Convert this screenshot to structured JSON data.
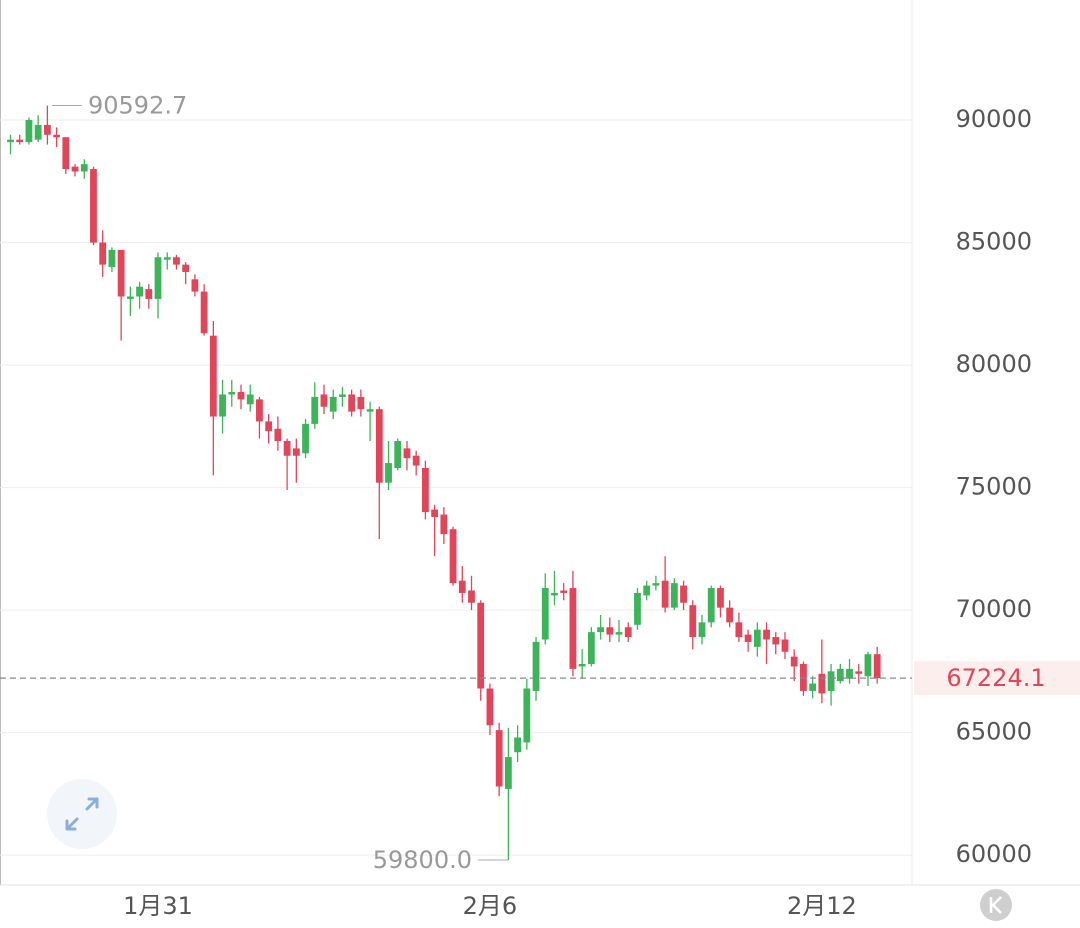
{
  "chart_data": {
    "type": "candlestick",
    "categories": [
      null,
      null,
      null,
      null,
      null,
      null,
      null,
      null,
      null,
      null,
      null,
      null,
      null,
      null,
      null,
      null,
      "1月31",
      null,
      null,
      null,
      null,
      null,
      null,
      null,
      null,
      null,
      null,
      null,
      null,
      null,
      null,
      null,
      null,
      null,
      null,
      null,
      null,
      null,
      null,
      null,
      null,
      null,
      null,
      null,
      null,
      null,
      null,
      null,
      null,
      null,
      null,
      null,
      "2月6",
      null,
      null,
      null,
      null,
      null,
      null,
      null,
      null,
      null,
      null,
      null,
      null,
      null,
      null,
      null,
      null,
      null,
      null,
      null,
      null,
      null,
      null,
      null,
      null,
      null,
      null,
      null,
      null,
      null,
      null,
      null,
      null,
      null,
      null,
      null,
      "2月12",
      null,
      null,
      null,
      null,
      null,
      null
    ],
    "open": [
      89100,
      89200,
      89100,
      89200,
      89800,
      89400,
      89300,
      88100,
      87900,
      88000,
      85000,
      84000,
      84700,
      82700,
      82800,
      83100,
      82700,
      84300,
      84400,
      84100,
      83500,
      83000,
      81200,
      77900,
      78800,
      78900,
      78400,
      78600,
      77700,
      77400,
      76900,
      76600,
      76400,
      77600,
      78800,
      78100,
      78700,
      78800,
      78700,
      78100,
      78200,
      75200,
      75800,
      76600,
      76300,
      75800,
      74100,
      73900,
      73300,
      71200,
      70800,
      70300,
      66800,
      65100,
      62700,
      64200,
      64600,
      66700,
      68800,
      70600,
      70800,
      70900,
      67700,
      67800,
      69100,
      69300,
      69000,
      69300,
      69400,
      70600,
      71000,
      71200,
      70100,
      71000,
      70200,
      68900,
      69500,
      70900,
      70100,
      69500,
      69000,
      68500,
      69200,
      68900,
      68800,
      68100,
      67800,
      66700,
      67400,
      66700,
      67100,
      67200,
      67500,
      67300,
      68200
    ],
    "high": [
      89400,
      89400,
      90100,
      90200,
      90592.7,
      89700,
      89300,
      88200,
      88400,
      88100,
      85500,
      84800,
      84700,
      83200,
      83400,
      83300,
      84600,
      84600,
      84500,
      84200,
      83700,
      83300,
      81800,
      79400,
      79400,
      79200,
      79200,
      78700,
      78000,
      77900,
      77000,
      77000,
      77800,
      79300,
      79200,
      79000,
      79100,
      79000,
      79000,
      78500,
      78300,
      76900,
      77000,
      76900,
      76500,
      76100,
      74300,
      74200,
      73400,
      71800,
      71400,
      70400,
      67000,
      65400,
      65200,
      65300,
      67200,
      68900,
      71500,
      71600,
      71100,
      71600,
      68400,
      69300,
      69800,
      69700,
      69600,
      69500,
      70900,
      71200,
      71400,
      72200,
      71300,
      71200,
      70400,
      69800,
      71000,
      71000,
      70400,
      69900,
      69200,
      69500,
      69500,
      69100,
      69100,
      68400,
      67900,
      67300,
      68800,
      67800,
      67800,
      68000,
      67800,
      68300,
      68500
    ],
    "low": [
      88600,
      89000,
      89000,
      89100,
      89000,
      88900,
      87800,
      87700,
      87600,
      84900,
      83600,
      83800,
      81000,
      82000,
      82300,
      82300,
      81900,
      83900,
      83900,
      83300,
      82800,
      81200,
      75500,
      77200,
      78300,
      78200,
      78100,
      77000,
      76800,
      76500,
      74900,
      75200,
      76200,
      77400,
      78000,
      77800,
      78300,
      77900,
      77900,
      76900,
      72900,
      74900,
      75700,
      75700,
      75500,
      73700,
      72200,
      72700,
      71000,
      70300,
      70000,
      66300,
      64900,
      62400,
      59800,
      63800,
      64300,
      66300,
      68600,
      70200,
      70400,
      67300,
      67200,
      67700,
      68800,
      68700,
      68700,
      68700,
      69200,
      70400,
      70800,
      69900,
      70000,
      70000,
      68400,
      68600,
      69300,
      69700,
      69300,
      68700,
      68300,
      68100,
      67800,
      68200,
      68000,
      67100,
      66500,
      66400,
      66200,
      66100,
      67000,
      67000,
      67000,
      66900,
      67000
    ],
    "close": [
      89200,
      89100,
      90000,
      89800,
      89400,
      89300,
      88000,
      87900,
      88200,
      85000,
      84100,
      84700,
      82800,
      82800,
      83200,
      82700,
      84400,
      84400,
      84100,
      83800,
      83000,
      81300,
      77900,
      78800,
      78900,
      78600,
      78800,
      77700,
      77300,
      76900,
      76300,
      76300,
      77600,
      78700,
      78300,
      78700,
      78800,
      78100,
      78200,
      78200,
      75200,
      76000,
      76900,
      76200,
      75900,
      74000,
      73800,
      73100,
      71100,
      70700,
      70300,
      66800,
      65300,
      62800,
      64000,
      64800,
      66800,
      68700,
      70900,
      70700,
      70700,
      67600,
      67800,
      69100,
      69300,
      69000,
      69100,
      68900,
      70700,
      71000,
      71100,
      70100,
      71100,
      70300,
      68900,
      69500,
      70900,
      70100,
      69500,
      68900,
      68700,
      69200,
      68800,
      68600,
      68300,
      67700,
      66700,
      67000,
      66600,
      67500,
      67600,
      67600,
      67400,
      68200,
      67224.1
    ],
    "up_color": "#3db35a",
    "down_color": "#e0455a",
    "ylim": [
      58780,
      94900
    ],
    "yticks": [
      60000,
      65000,
      70000,
      75000,
      80000,
      85000,
      90000
    ],
    "grid": true,
    "annotations": {
      "max": {
        "value": 90592.7,
        "label": "90592.7"
      },
      "min": {
        "value": 59800,
        "label": "59800.0"
      },
      "last": {
        "value": 67224.1,
        "label": "67224.1"
      }
    }
  }
}
